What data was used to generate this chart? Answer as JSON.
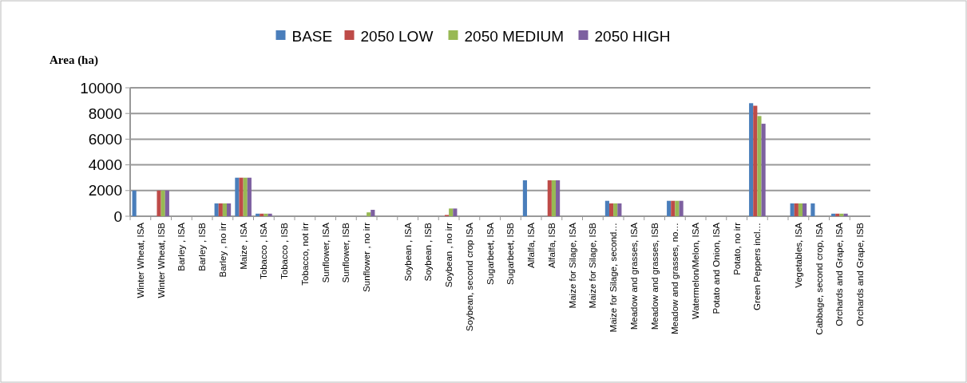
{
  "chart_data": {
    "type": "bar",
    "ylabel": "Area (ha)",
    "categories": [
      "Winter Wheat, ISA",
      "Winter Wheat, ISB",
      "Barley , ISA",
      "Barley , ISB",
      "Barley , no irr",
      "Maize , ISA",
      "Tobacco , ISA",
      "Tobacco , ISB",
      "Tobacco, not irr",
      "Sunflower, ISA",
      "Sunflower, ISB",
      "Sunflower , no irr",
      null,
      "Soybean , ISA",
      "Soybean , ISB",
      "Soybean , no irr",
      "Soybean, second crop ISA",
      "Sugarbeet,  ISA",
      "Sugarbeet,  ISB",
      "Alfalfa, ISA",
      "Alfalfa, ISB",
      "Maize for Silage, ISA",
      "Maize for Silage, ISB",
      "Maize for Silage, second…",
      "Meadow and grasses, ISA",
      "Meadow and grasses, ISB",
      "Meadow and grasses, no…",
      "Watermelon/Melon, ISA",
      "Potato and Onion, ISA",
      "Potato, no irr",
      "Green Peppers  incl…",
      null,
      "Vegetables, ISA",
      "Cabbage, second crop, ISA",
      "Orchards and Grape, ISA",
      "Orchards and Grape, ISB"
    ],
    "series": [
      {
        "name": "BASE",
        "color": "#4a7ebb",
        "values": [
          2000,
          0,
          0,
          0,
          1000,
          3000,
          200,
          0,
          0,
          0,
          0,
          0,
          0,
          0,
          0,
          0,
          0,
          0,
          0,
          2800,
          0,
          0,
          0,
          1200,
          0,
          0,
          1200,
          0,
          0,
          0,
          8800,
          0,
          1000,
          1000,
          200,
          0
        ]
      },
      {
        "name": "2050 LOW",
        "color": "#be4b48",
        "values": [
          0,
          2000,
          0,
          0,
          1000,
          3000,
          200,
          0,
          0,
          0,
          0,
          0,
          0,
          0,
          0,
          100,
          0,
          0,
          0,
          0,
          2800,
          0,
          0,
          1000,
          0,
          0,
          1200,
          0,
          0,
          0,
          8600,
          0,
          1000,
          0,
          200,
          0
        ]
      },
      {
        "name": "2050 MEDIUM",
        "color": "#98b954",
        "values": [
          0,
          2000,
          0,
          0,
          1000,
          3000,
          200,
          0,
          0,
          0,
          0,
          300,
          0,
          0,
          0,
          600,
          0,
          0,
          0,
          0,
          2800,
          0,
          0,
          1000,
          0,
          0,
          1200,
          0,
          0,
          0,
          7800,
          0,
          1000,
          0,
          200,
          0
        ]
      },
      {
        "name": "2050 HIGH",
        "color": "#7d60a0",
        "values": [
          0,
          2000,
          0,
          0,
          1000,
          3000,
          200,
          0,
          0,
          0,
          0,
          500,
          0,
          0,
          0,
          600,
          0,
          0,
          0,
          0,
          2800,
          0,
          0,
          1000,
          0,
          0,
          1200,
          0,
          0,
          0,
          7200,
          0,
          1000,
          0,
          200,
          0
        ]
      }
    ],
    "ylim": [
      0,
      10000
    ],
    "yticks": [
      0,
      2000,
      4000,
      6000,
      8000,
      10000
    ],
    "grid": "y",
    "legend": "top"
  }
}
